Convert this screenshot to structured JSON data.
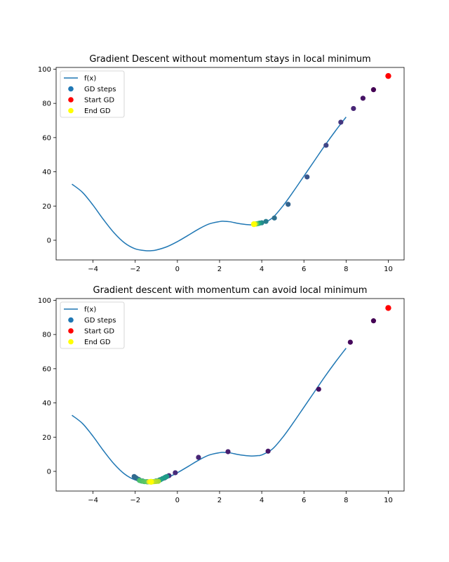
{
  "chart_data": [
    {
      "type": "line",
      "title": "Gradient Descent without momentum stays in local minimum",
      "xlim": [
        -5.75,
        10.75
      ],
      "ylim": [
        -11.5,
        101
      ],
      "xticks": [
        -4,
        -2,
        0,
        2,
        4,
        6,
        8,
        10
      ],
      "yticks": [
        0,
        20,
        40,
        60,
        80,
        100
      ],
      "grid": false,
      "legend_position": "top-left",
      "legend": [
        {
          "label": "f(x)",
          "kind": "line",
          "color": "#1f77b4"
        },
        {
          "label": "GD steps",
          "kind": "marker",
          "color": "#1f77b4"
        },
        {
          "label": "Start GD",
          "kind": "marker",
          "color": "#ff0000"
        },
        {
          "label": "End GD",
          "kind": "marker",
          "color": "#ffff00"
        }
      ],
      "curve": {
        "name": "f(x)",
        "color": "#1f77b4",
        "x": [
          -5.0,
          -4.5,
          -4.0,
          -3.5,
          -3.0,
          -2.5,
          -2.0,
          -1.5,
          -1.25,
          -1.0,
          -0.5,
          0.0,
          0.5,
          1.0,
          1.5,
          2.0,
          2.2,
          2.5,
          3.0,
          3.5,
          3.8,
          4.0,
          4.5,
          5.0,
          5.5,
          6.0,
          6.5,
          7.0,
          7.5,
          8.0
        ],
        "y": [
          32.8,
          28.0,
          20.5,
          12.0,
          4.3,
          -1.6,
          -5.0,
          -6.1,
          -6.1,
          -5.7,
          -3.8,
          -0.8,
          2.8,
          6.5,
          9.5,
          10.9,
          11.1,
          10.8,
          9.6,
          9.0,
          9.2,
          9.6,
          13.0,
          20.0,
          28.5,
          37.5,
          46.5,
          55.5,
          64.0,
          72.0
        ]
      },
      "steps": {
        "name": "GD steps",
        "colormap": "viridis",
        "x": [
          9.3,
          8.8,
          8.35,
          7.75,
          7.05,
          6.15,
          5.25,
          4.6,
          4.2,
          4.0,
          3.9,
          3.85,
          3.8,
          3.78,
          3.75,
          3.72,
          3.7,
          3.68,
          3.66,
          3.65
        ],
        "y": [
          88,
          83,
          77,
          69,
          55.5,
          37,
          21,
          13,
          11,
          10.2,
          10.0,
          9.8,
          9.7,
          9.6,
          9.6,
          9.5,
          9.5,
          9.4,
          9.4,
          9.4
        ]
      },
      "start": {
        "label": "Start GD",
        "x": 10.0,
        "y": 96.0,
        "color": "#ff0000"
      },
      "end": {
        "label": "End GD",
        "x": 3.63,
        "y": 9.4,
        "color": "#ffff00"
      }
    },
    {
      "type": "line",
      "title": "Gradient descent with momentum can avoid local minimum",
      "xlim": [
        -5.75,
        10.75
      ],
      "ylim": [
        -11.5,
        101
      ],
      "xticks": [
        -4,
        -2,
        0,
        2,
        4,
        6,
        8,
        10
      ],
      "yticks": [
        0,
        20,
        40,
        60,
        80,
        100
      ],
      "grid": false,
      "legend_position": "top-left",
      "legend": [
        {
          "label": "f(x)",
          "kind": "line",
          "color": "#1f77b4"
        },
        {
          "label": "GD steps",
          "kind": "marker",
          "color": "#1f77b4"
        },
        {
          "label": "Start GD",
          "kind": "marker",
          "color": "#ff0000"
        },
        {
          "label": "End GD",
          "kind": "marker",
          "color": "#ffff00"
        }
      ],
      "curve": {
        "name": "f(x)",
        "color": "#1f77b4",
        "x": [
          -5.0,
          -4.5,
          -4.0,
          -3.5,
          -3.0,
          -2.5,
          -2.0,
          -1.5,
          -1.25,
          -1.0,
          -0.5,
          0.0,
          0.5,
          1.0,
          1.5,
          2.0,
          2.2,
          2.5,
          3.0,
          3.5,
          3.8,
          4.0,
          4.5,
          5.0,
          5.5,
          6.0,
          6.5,
          7.0,
          7.5,
          8.0
        ],
        "y": [
          32.8,
          28.0,
          20.5,
          12.0,
          4.3,
          -1.6,
          -5.0,
          -6.1,
          -6.1,
          -5.7,
          -3.8,
          -0.8,
          2.8,
          6.5,
          9.5,
          10.9,
          11.1,
          10.8,
          9.6,
          9.0,
          9.2,
          9.6,
          13.0,
          20.0,
          28.5,
          37.5,
          46.5,
          55.5,
          64.0,
          72.0
        ]
      },
      "steps": {
        "name": "GD steps",
        "colormap": "viridis",
        "x": [
          9.3,
          8.2,
          6.7,
          4.3,
          2.4,
          1.0,
          -0.1,
          -0.4,
          -0.6,
          -0.8,
          -1.0,
          -1.2,
          -1.4,
          -1.6,
          -1.8,
          -1.95,
          -2.05,
          -2.0,
          -1.85,
          -1.65,
          -1.45,
          -1.25,
          -1.05,
          -0.85,
          -0.7,
          -0.55,
          -0.5,
          -0.6,
          -0.8,
          -1.0,
          -1.2,
          -1.4,
          -1.55,
          -1.7,
          -1.8,
          -1.75,
          -1.6,
          -1.45,
          -1.3,
          -1.15,
          -1.05,
          -0.95,
          -0.9,
          -1.0,
          -1.1,
          -1.2,
          -1.3,
          -1.35,
          -1.3,
          -1.25
        ],
        "y": [
          88,
          75.5,
          48,
          11.8,
          11.5,
          8.2,
          -0.8,
          -2.5,
          -3.8,
          -4.8,
          -5.6,
          -6.0,
          -6.1,
          -5.9,
          -5.0,
          -3.9,
          -3.0,
          -3.5,
          -4.6,
          -5.6,
          -6.0,
          -6.1,
          -5.8,
          -5.0,
          -4.2,
          -3.3,
          -3.0,
          -3.6,
          -4.9,
          -5.6,
          -6.0,
          -6.1,
          -6.0,
          -5.7,
          -5.3,
          -5.5,
          -5.9,
          -6.1,
          -6.1,
          -6.0,
          -5.9,
          -5.8,
          -5.8,
          -5.9,
          -6.0,
          -6.1,
          -6.1,
          -6.1,
          -6.1,
          -6.1
        ]
      },
      "start": {
        "label": "Start GD",
        "x": 10.0,
        "y": 95.5,
        "color": "#ff0000"
      },
      "end": {
        "label": "End GD",
        "x": -1.25,
        "y": -6.1,
        "color": "#ffff00"
      }
    }
  ]
}
